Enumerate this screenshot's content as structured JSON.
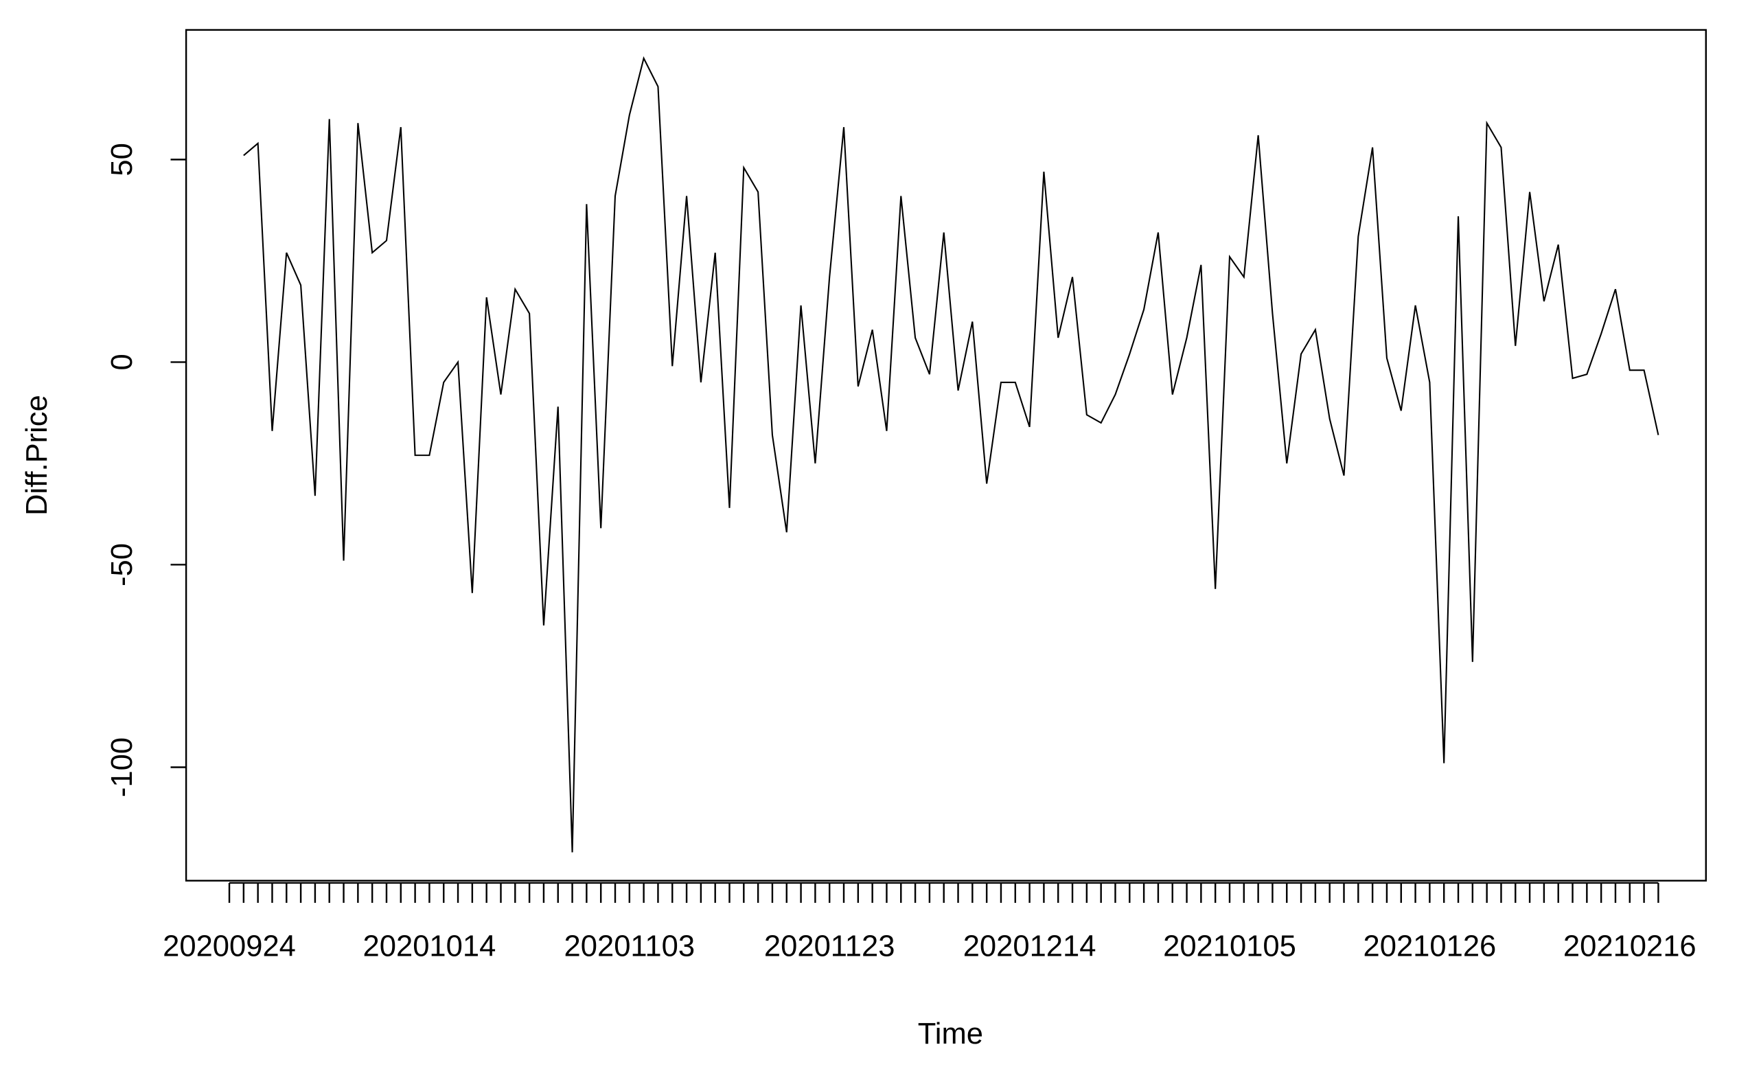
{
  "chart_data": {
    "type": "line",
    "xlabel": "Time",
    "ylabel": "Diff.Price",
    "categories": [
      "20200924",
      null,
      null,
      null,
      null,
      null,
      null,
      null,
      null,
      null,
      null,
      null,
      null,
      null,
      "20201014",
      null,
      null,
      null,
      null,
      null,
      null,
      null,
      null,
      null,
      null,
      null,
      null,
      null,
      "20201103",
      null,
      null,
      null,
      null,
      null,
      null,
      null,
      null,
      null,
      null,
      null,
      null,
      null,
      "20201123",
      null,
      null,
      null,
      null,
      null,
      null,
      null,
      null,
      null,
      null,
      null,
      null,
      null,
      "20201214",
      null,
      null,
      null,
      null,
      null,
      null,
      null,
      null,
      null,
      null,
      null,
      null,
      null,
      "20210105",
      null,
      null,
      null,
      null,
      null,
      null,
      null,
      null,
      null,
      null,
      null,
      null,
      null,
      "20210126",
      null,
      null,
      null,
      null,
      null,
      null,
      null,
      null,
      null,
      null,
      null,
      null,
      null,
      "20210216",
      null,
      null
    ],
    "values": [
      null,
      51,
      54,
      -17,
      27,
      19,
      -33,
      60,
      -49,
      59,
      27,
      30,
      58,
      -23,
      -23,
      -5,
      0,
      -57,
      16,
      -8,
      18,
      12,
      -65,
      -11,
      -121,
      39,
      -41,
      41,
      61,
      75,
      68,
      -1,
      41,
      -5,
      27,
      -36,
      48,
      42,
      -18,
      -42,
      14,
      -25,
      21,
      58,
      -6,
      8,
      -17,
      41,
      6,
      -3,
      32,
      -7,
      10,
      -30,
      -5,
      -5,
      -16,
      47,
      6,
      21,
      -13,
      -15,
      -8,
      2,
      13,
      32,
      -8,
      6,
      24,
      -56,
      26,
      21,
      56,
      12,
      -25,
      2,
      8,
      -14,
      -28,
      31,
      53,
      1,
      -12,
      14,
      -5,
      -99,
      36,
      -74,
      59,
      53,
      4,
      42,
      15,
      29,
      -4,
      -3,
      7,
      18,
      -2,
      -2,
      -18
    ],
    "color": "#000000",
    "ylim": [
      -128,
      82
    ],
    "yticks": [
      -100,
      -50,
      0,
      50
    ]
  }
}
